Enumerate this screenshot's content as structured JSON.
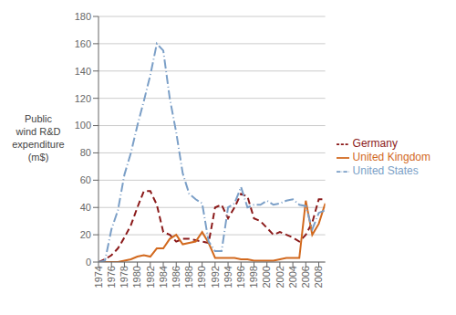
{
  "chart_data": {
    "type": "line",
    "ylabel": "Public\nwind R&D\nexpenditure\n(m$)",
    "x": [
      1974,
      1975,
      1976,
      1977,
      1978,
      1979,
      1980,
      1981,
      1982,
      1983,
      1984,
      1985,
      1986,
      1987,
      1988,
      1989,
      1990,
      1991,
      1992,
      1993,
      1994,
      1995,
      1996,
      1997,
      1998,
      1999,
      2000,
      2001,
      2002,
      2003,
      2004,
      2005,
      2006,
      2007,
      2008,
      2009
    ],
    "series": [
      {
        "name": "Germany",
        "color": "#8B1A1A",
        "line_style": "dashed",
        "values": [
          0,
          2,
          5,
          10,
          18,
          27,
          40,
          52,
          52,
          42,
          22,
          20,
          15,
          17,
          17,
          16,
          15,
          14,
          40,
          42,
          32,
          40,
          50,
          48,
          32,
          30,
          25,
          20,
          22,
          20,
          18,
          15,
          20,
          29,
          46,
          46
        ]
      },
      {
        "name": "United Kingdom",
        "color": "#D2691E",
        "line_style": "solid",
        "values": [
          0,
          0,
          0,
          0,
          1,
          2,
          4,
          5,
          4,
          10,
          10,
          17,
          20,
          13,
          14,
          15,
          22,
          14,
          3,
          3,
          3,
          3,
          2,
          2,
          1,
          1,
          1,
          1,
          2,
          3,
          3,
          3,
          45,
          20,
          28,
          43
        ]
      },
      {
        "name": "United States",
        "color": "#7B9FC7",
        "line_style": "dashdot",
        "values": [
          0,
          1,
          24,
          38,
          64,
          80,
          100,
          118,
          137,
          160,
          155,
          120,
          95,
          65,
          50,
          46,
          43,
          15,
          8,
          8,
          40,
          43,
          55,
          40,
          42,
          42,
          45,
          42,
          43,
          45,
          46,
          42,
          41,
          24,
          36,
          38
        ]
      }
    ],
    "xlim": [
      1974,
      2009
    ],
    "xticks": [
      1974,
      1976,
      1978,
      1980,
      1982,
      1984,
      1986,
      1988,
      1990,
      1992,
      1994,
      1996,
      1998,
      2000,
      2002,
      2004,
      2006,
      2008
    ],
    "ylim": [
      0,
      180
    ],
    "yticks": [
      0,
      20,
      40,
      60,
      80,
      100,
      120,
      140,
      160,
      180
    ],
    "grid": "y",
    "legend": "right"
  }
}
